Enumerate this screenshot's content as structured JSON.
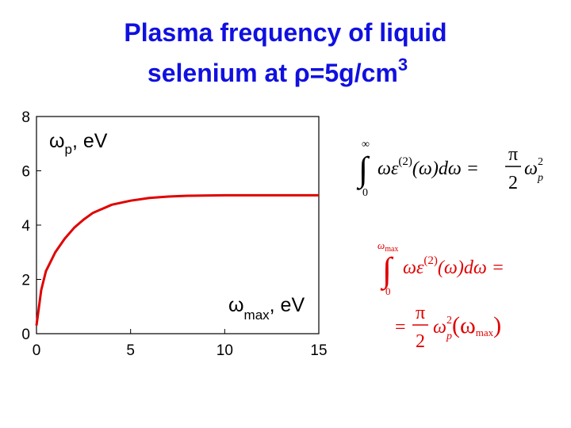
{
  "title": {
    "lines": [
      "Plasma frequency of liquid",
      "selenium at ρ=5g/cm"
    ],
    "superscript": "3"
  },
  "chart_data": {
    "type": "line",
    "x": [
      0,
      0.25,
      0.5,
      1,
      1.5,
      2,
      2.5,
      3,
      4,
      5,
      6,
      7,
      8,
      10,
      12,
      15
    ],
    "values": [
      0.3,
      1.6,
      2.3,
      3.0,
      3.5,
      3.9,
      4.2,
      4.45,
      4.75,
      4.9,
      5.0,
      5.05,
      5.08,
      5.1,
      5.1,
      5.1
    ],
    "color": "#e00000",
    "xlim": [
      0,
      15
    ],
    "xticks": [
      0,
      5,
      10,
      15
    ],
    "ylim": [
      0,
      8
    ],
    "yticks": [
      0,
      2,
      4,
      6,
      8
    ],
    "y_label": {
      "base": "ω",
      "sub": "p",
      "rest": ", eV"
    },
    "x_label": {
      "base": "ω",
      "sub": "max",
      "rest": ", eV"
    }
  },
  "equations": [
    {
      "integral": "∫",
      "upper": "∞",
      "lower": "0",
      "integrand": "ωε",
      "sup": "(2)",
      "rest": "(ω)dω =",
      "num": "π",
      "den": "2",
      "omega": "ω",
      "sub": "p",
      "sup2": "2"
    },
    {
      "integral": "∫",
      "upper": "ω",
      "upper_sub": "max",
      "lower": "0",
      "integrand": "ωε",
      "sup": "(2)",
      "rest": "(ω)dω =",
      "eq": "=",
      "num": "π",
      "den": "2",
      "omega": "ω",
      "sub": "p",
      "sup2": "2",
      "arg": "(ω",
      "arg_sub": "max",
      "close": ")"
    }
  ]
}
